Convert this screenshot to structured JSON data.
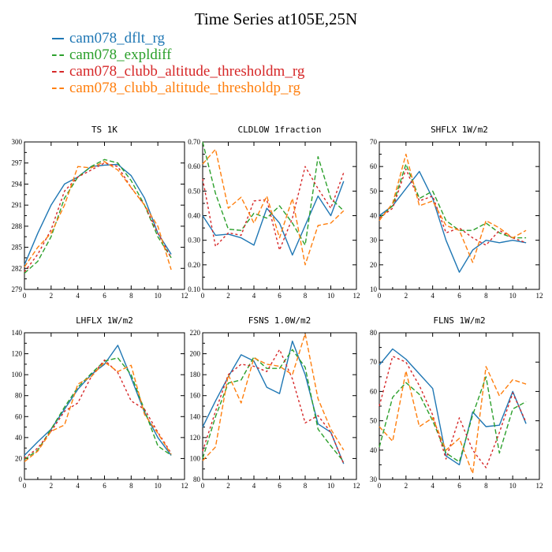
{
  "title": "Time Series at105E,25N",
  "legend": [
    {
      "label": "cam078_dflt_rg",
      "color": "#1f77b4",
      "dash": false
    },
    {
      "label": "cam078_expldiff",
      "color": "#2ca02c",
      "dash": true
    },
    {
      "label": "cam078_clubb_altitude_thresholdm_rg",
      "color": "#d62728",
      "dash": true
    },
    {
      "label": "cam078_clubb_altitude_thresholdp_rg",
      "color": "#ff7f0e",
      "dash": true
    }
  ],
  "chart_data": [
    {
      "type": "line",
      "title": "TS",
      "units": "1K",
      "x": [
        0,
        1,
        2,
        3,
        4,
        5,
        6,
        7,
        8,
        9,
        10,
        11
      ],
      "xlim": [
        0,
        12
      ],
      "xticks": [
        0,
        2,
        4,
        6,
        8,
        10,
        12
      ],
      "ylim": [
        279,
        300
      ],
      "yticks": [
        "279",
        "282",
        "285",
        "288",
        "291",
        "294",
        "297",
        "300"
      ],
      "series": [
        {
          "name": "cam078_dflt_rg",
          "values": [
            282.5,
            287,
            291,
            294,
            295,
            296.5,
            296.7,
            296.8,
            295.2,
            292,
            287,
            284
          ]
        },
        {
          "name": "cam078_expldiff",
          "values": [
            281.3,
            283,
            286.5,
            292,
            295,
            296.5,
            297.5,
            297,
            294.5,
            291,
            286.5,
            283.5
          ]
        },
        {
          "name": "cam078_clubb_altitude_thresholdm_rg",
          "values": [
            281.5,
            284,
            287.5,
            293,
            295,
            296,
            297,
            296.5,
            293.5,
            291,
            287,
            283.5
          ]
        },
        {
          "name": "cam078_clubb_altitude_thresholdp_rg",
          "values": [
            282.2,
            285,
            287,
            291,
            296.5,
            296.3,
            297.2,
            296,
            293.5,
            291,
            288,
            281.8
          ]
        }
      ]
    },
    {
      "type": "line",
      "title": "CLDLOW",
      "units": "1fraction",
      "x": [
        0,
        1,
        2,
        3,
        4,
        5,
        6,
        7,
        8,
        9,
        10,
        11
      ],
      "xlim": [
        0,
        12
      ],
      "xticks": [
        0,
        2,
        4,
        6,
        8,
        10,
        12
      ],
      "ylim": [
        0.1,
        0.7
      ],
      "yticks": [
        "0.10",
        "0.20",
        "0.30",
        "0.40",
        "0.50",
        "0.60",
        "0.70"
      ],
      "series": [
        {
          "name": "cam078_dflt_rg",
          "values": [
            0.4,
            0.32,
            0.325,
            0.31,
            0.28,
            0.43,
            0.37,
            0.24,
            0.36,
            0.48,
            0.4,
            0.54
          ]
        },
        {
          "name": "cam078_expldiff",
          "values": [
            0.7,
            0.49,
            0.345,
            0.34,
            0.41,
            0.39,
            0.44,
            0.37,
            0.28,
            0.64,
            0.47,
            0.42
          ]
        },
        {
          "name": "cam078_clubb_altitude_thresholdm_rg",
          "values": [
            0.55,
            0.275,
            0.33,
            0.32,
            0.46,
            0.465,
            0.26,
            0.39,
            0.6,
            0.51,
            0.43,
            0.575
          ]
        },
        {
          "name": "cam078_clubb_altitude_thresholdp_rg",
          "values": [
            0.61,
            0.67,
            0.43,
            0.475,
            0.37,
            0.48,
            0.31,
            0.47,
            0.2,
            0.36,
            0.37,
            0.42
          ]
        }
      ]
    },
    {
      "type": "line",
      "title": "SHFLX",
      "units": "1W/m2",
      "x": [
        0,
        1,
        2,
        3,
        4,
        5,
        6,
        7,
        8,
        9,
        10,
        11
      ],
      "xlim": [
        0,
        12
      ],
      "xticks": [
        0,
        2,
        4,
        6,
        8,
        10,
        12
      ],
      "ylim": [
        10,
        70
      ],
      "yticks": [
        "10",
        "20",
        "30",
        "40",
        "50",
        "60",
        "70"
      ],
      "series": [
        {
          "name": "cam078_dflt_rg",
          "values": [
            40,
            44,
            51,
            58,
            47,
            30,
            17,
            26,
            30,
            29,
            30,
            29
          ]
        },
        {
          "name": "cam078_expldiff",
          "values": [
            39,
            44,
            61,
            47,
            50,
            38,
            34,
            34,
            37,
            33,
            31,
            31
          ]
        },
        {
          "name": "cam078_clubb_altitude_thresholdm_rg",
          "values": [
            39,
            43,
            59,
            46,
            48,
            33,
            35,
            31,
            28,
            34,
            31,
            29
          ]
        },
        {
          "name": "cam078_clubb_altitude_thresholdp_rg",
          "values": [
            38,
            45,
            65,
            44,
            46,
            36,
            34,
            21,
            38,
            35,
            31,
            34
          ]
        }
      ]
    },
    {
      "type": "line",
      "title": "LHFLX",
      "units": "1W/m2",
      "x": [
        0,
        1,
        2,
        3,
        4,
        5,
        6,
        7,
        8,
        9,
        10,
        11
      ],
      "xlim": [
        0,
        12
      ],
      "xticks": [
        0,
        2,
        4,
        6,
        8,
        10,
        12
      ],
      "ylim": [
        0,
        140
      ],
      "yticks": [
        "0",
        "20",
        "40",
        "60",
        "80",
        "100",
        "120",
        "140"
      ],
      "series": [
        {
          "name": "cam078_dflt_rg",
          "values": [
            23,
            36,
            48,
            67,
            86,
            100,
            110,
            128,
            97,
            64,
            40,
            23
          ]
        },
        {
          "name": "cam078_expldiff",
          "values": [
            19,
            28,
            48,
            69,
            88,
            101,
            113,
            116,
            100,
            66,
            32,
            23
          ]
        },
        {
          "name": "cam078_clubb_altitude_thresholdm_rg",
          "values": [
            20,
            30,
            46,
            65,
            73,
            98,
            114,
            102,
            75,
            67,
            45,
            25
          ]
        },
        {
          "name": "cam078_clubb_altitude_thresholdp_rg",
          "values": [
            17,
            27,
            46,
            52,
            91,
            98,
            112,
            103,
            109,
            62,
            44,
            24
          ]
        }
      ]
    },
    {
      "type": "line",
      "title": "FSNS",
      "units": "1.0W/m2",
      "x": [
        0,
        1,
        2,
        3,
        4,
        5,
        6,
        7,
        8,
        9,
        10,
        11
      ],
      "xlim": [
        0,
        12
      ],
      "xticks": [
        0,
        2,
        4,
        6,
        8,
        10,
        12
      ],
      "ylim": [
        80,
        220
      ],
      "yticks": [
        "80",
        "100",
        "120",
        "140",
        "160",
        "180",
        "200",
        "220"
      ],
      "series": [
        {
          "name": "cam078_dflt_rg",
          "values": [
            130,
            155,
            178,
            199,
            193,
            168,
            162,
            212,
            180,
            133,
            125,
            95
          ]
        },
        {
          "name": "cam078_expldiff",
          "values": [
            100,
            140,
            172,
            175,
            197,
            186,
            186,
            204,
            187,
            128,
            112,
            97
          ]
        },
        {
          "name": "cam078_clubb_altitude_thresholdm_rg",
          "values": [
            107,
            145,
            180,
            190,
            188,
            183,
            204,
            176,
            134,
            141,
            125,
            95
          ]
        },
        {
          "name": "cam078_clubb_altitude_thresholdp_rg",
          "values": [
            98,
            111,
            180,
            153,
            196,
            190,
            188,
            180,
            219,
            157,
            128,
            108
          ]
        }
      ]
    },
    {
      "type": "line",
      "title": "FLNS",
      "units": "1W/m2",
      "x": [
        0,
        1,
        2,
        3,
        4,
        5,
        6,
        7,
        8,
        9,
        10,
        11
      ],
      "xlim": [
        0,
        12
      ],
      "xticks": [
        0,
        2,
        4,
        6,
        8,
        10,
        12
      ],
      "ylim": [
        30,
        80
      ],
      "yticks": [
        "30",
        "40",
        "50",
        "60",
        "70",
        "80"
      ],
      "series": [
        {
          "name": "cam078_dflt_rg",
          "values": [
            69,
            74.5,
            71,
            66,
            61,
            38,
            35,
            53,
            48,
            48.5,
            60,
            49
          ]
        },
        {
          "name": "cam078_expldiff",
          "values": [
            41,
            58,
            63,
            59,
            50,
            39,
            36,
            52,
            65,
            39,
            54,
            56.5
          ]
        },
        {
          "name": "cam078_clubb_altitude_thresholdm_rg",
          "values": [
            55,
            72,
            70,
            62,
            52,
            37,
            51,
            40,
            34,
            46,
            59.5,
            49.5
          ]
        },
        {
          "name": "cam078_clubb_altitude_thresholdp_rg",
          "values": [
            48,
            43,
            67,
            48,
            51,
            40,
            44,
            32,
            68.5,
            58.5,
            64,
            62.5
          ]
        }
      ]
    }
  ]
}
